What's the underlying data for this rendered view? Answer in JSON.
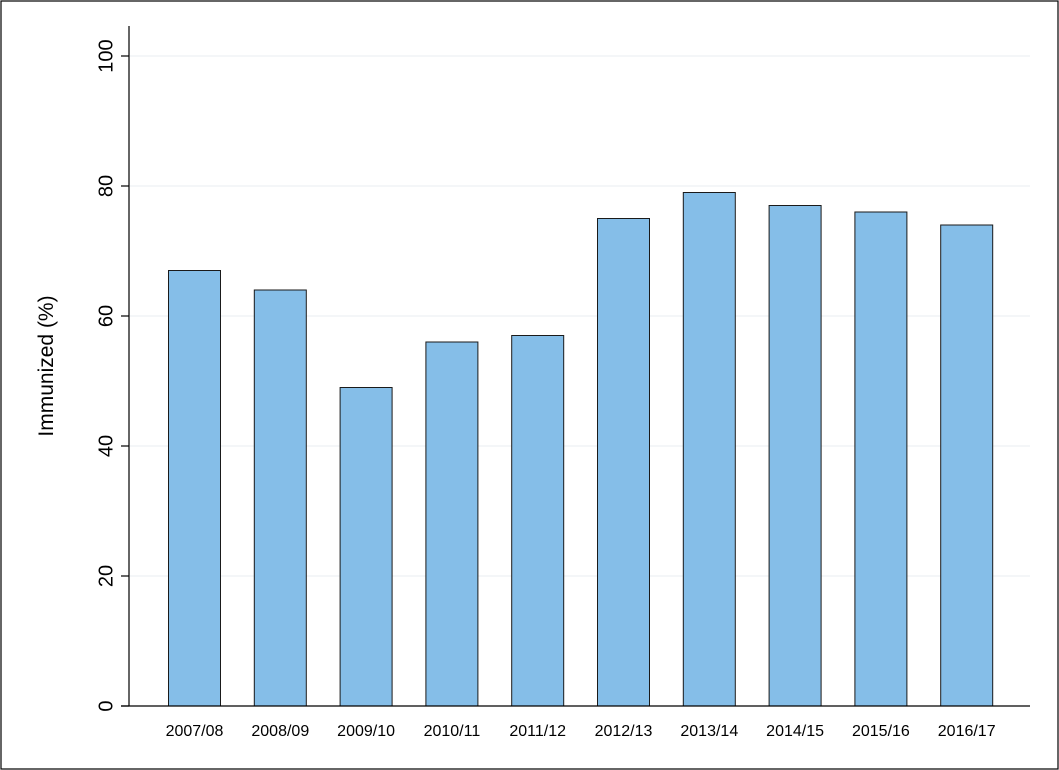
{
  "chart_data": {
    "type": "bar",
    "title": "",
    "xlabel": "",
    "ylabel": "Immunized (%)",
    "ylim": [
      0,
      100
    ],
    "yticks": [
      0,
      20,
      40,
      60,
      80,
      100
    ],
    "grid": true,
    "bar_color": "#85bee8",
    "categories": [
      "2007/08",
      "2008/09",
      "2009/10",
      "2010/11",
      "2011/12",
      "2012/13",
      "2013/14",
      "2014/15",
      "2015/16",
      "2016/17"
    ],
    "values": [
      67,
      64,
      49,
      56,
      57,
      75,
      79,
      77,
      76,
      74
    ]
  }
}
